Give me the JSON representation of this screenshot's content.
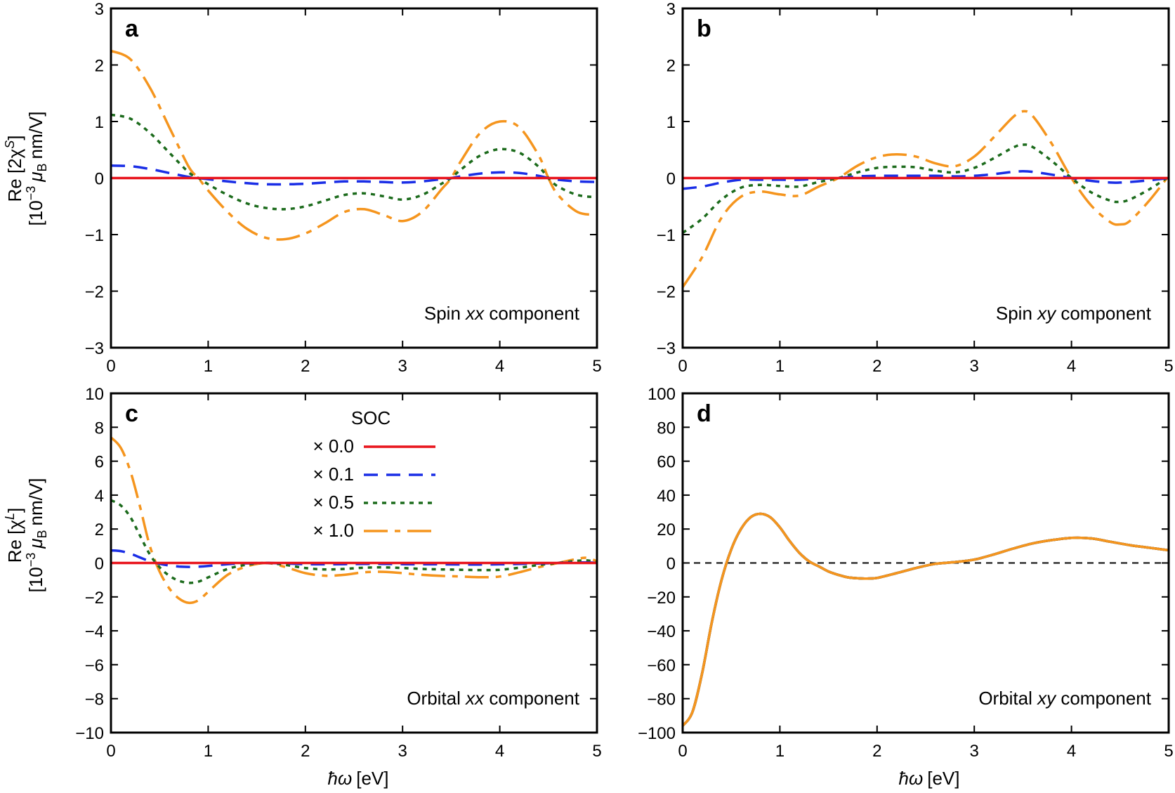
{
  "figure": {
    "ylabel_top_line1": "Re [2χ",
    "ylabel_top_sup": "S",
    "ylabel_top_end": "]",
    "ylabel_bottom_line1": "Re [χ",
    "ylabel_bottom_sup": "L",
    "ylabel_bottom_end": "]",
    "ylabel_units_open": "[10",
    "ylabel_units_exp": "−3",
    "ylabel_units_mu": "μ",
    "ylabel_units_sub": "B",
    "ylabel_units_rest": "nm/V]",
    "xlabel_hbar": "ħω",
    "xlabel_units": "[eV]"
  },
  "legend": {
    "title": "SOC",
    "entries": [
      {
        "label": "× 0.0",
        "color": "#e8141c",
        "dash": "solid"
      },
      {
        "label": "× 0.1",
        "color": "#1a2ee6",
        "dash": "dashed"
      },
      {
        "label": "× 0.5",
        "color": "#1c6b1c",
        "dash": "dotted"
      },
      {
        "label": "× 1.0",
        "color": "#f5951e",
        "dash": "dashdot"
      }
    ]
  },
  "colors": {
    "soc_0.0": "#e8141c",
    "soc_0.1": "#1a2ee6",
    "soc_0.5": "#1c6b1c",
    "soc_1.0": "#f5951e",
    "zero_line": "#000000"
  },
  "chart_data": [
    {
      "panel": "a",
      "type": "line",
      "annotation_prefix": "Spin ",
      "annotation_italic": "xx",
      "annotation_suffix": " component",
      "xlim": [
        0,
        5
      ],
      "ylim": [
        -3,
        3
      ],
      "xticks": [
        "0",
        "1",
        "2",
        "3",
        "4",
        "5"
      ],
      "yticks": [
        "−3",
        "−2",
        "−1",
        "0",
        "1",
        "2",
        "3"
      ],
      "x": [
        0,
        0.2,
        0.4,
        0.6,
        0.8,
        0.9,
        1.0,
        1.2,
        1.4,
        1.6,
        1.8,
        2.0,
        2.2,
        2.4,
        2.6,
        2.8,
        3.0,
        3.2,
        3.4,
        3.5,
        3.6,
        3.8,
        4.0,
        4.2,
        4.4,
        4.5,
        4.6,
        4.8,
        5.0
      ],
      "series": [
        {
          "name": "× 0.0",
          "values": [
            0,
            0,
            0,
            0,
            0,
            0,
            0,
            0,
            0,
            0,
            0,
            0,
            0,
            0,
            0,
            0,
            0,
            0,
            0,
            0,
            0,
            0,
            0,
            0,
            0,
            0,
            0,
            0,
            0
          ]
        },
        {
          "name": "× 0.1",
          "values": [
            0.22,
            0.21,
            0.16,
            0.09,
            0.02,
            0.0,
            -0.02,
            -0.06,
            -0.09,
            -0.11,
            -0.11,
            -0.1,
            -0.08,
            -0.06,
            -0.06,
            -0.07,
            -0.08,
            -0.06,
            -0.02,
            0.0,
            0.03,
            0.08,
            0.1,
            0.09,
            0.04,
            0.0,
            -0.03,
            -0.06,
            -0.07
          ]
        },
        {
          "name": "× 0.5",
          "values": [
            1.12,
            1.05,
            0.8,
            0.45,
            0.1,
            0.0,
            -0.11,
            -0.3,
            -0.45,
            -0.53,
            -0.55,
            -0.5,
            -0.4,
            -0.3,
            -0.27,
            -0.32,
            -0.38,
            -0.3,
            -0.1,
            0.0,
            0.15,
            0.4,
            0.51,
            0.45,
            0.2,
            0.0,
            -0.15,
            -0.3,
            -0.34
          ]
        },
        {
          "name": "× 1.0",
          "values": [
            2.25,
            2.1,
            1.6,
            0.9,
            0.2,
            0.0,
            -0.22,
            -0.6,
            -0.9,
            -1.06,
            -1.08,
            -0.98,
            -0.8,
            -0.6,
            -0.55,
            -0.65,
            -0.76,
            -0.6,
            -0.2,
            0.0,
            0.3,
            0.8,
            1.0,
            0.9,
            0.4,
            0.0,
            -0.3,
            -0.6,
            -0.65
          ]
        }
      ]
    },
    {
      "panel": "b",
      "type": "line",
      "annotation_prefix": "Spin ",
      "annotation_italic": "xy",
      "annotation_suffix": " component",
      "xlim": [
        0,
        5
      ],
      "ylim": [
        -3,
        3
      ],
      "xticks": [
        "0",
        "1",
        "2",
        "3",
        "4",
        "5"
      ],
      "yticks": [
        "−3",
        "−2",
        "−1",
        "0",
        "1",
        "2",
        "3"
      ],
      "x": [
        0,
        0.2,
        0.4,
        0.6,
        0.8,
        1.0,
        1.2,
        1.4,
        1.6,
        1.8,
        2.0,
        2.2,
        2.4,
        2.6,
        2.8,
        3.0,
        3.2,
        3.4,
        3.5,
        3.6,
        3.8,
        4.0,
        4.2,
        4.4,
        4.5,
        4.6,
        4.8,
        5.0
      ],
      "series": [
        {
          "name": "× 0.0",
          "values": [
            0,
            0,
            0,
            0,
            0,
            0,
            0,
            0,
            0,
            0,
            0,
            0,
            0,
            0,
            0,
            0,
            0,
            0,
            0,
            0,
            0,
            0,
            0,
            0,
            0,
            0,
            0,
            0
          ]
        },
        {
          "name": "× 0.1",
          "values": [
            -0.19,
            -0.15,
            -0.08,
            -0.03,
            -0.03,
            -0.03,
            -0.03,
            -0.01,
            0.0,
            0.03,
            0.04,
            0.04,
            0.04,
            0.04,
            0.03,
            0.04,
            0.07,
            0.11,
            0.12,
            0.11,
            0.06,
            0.0,
            -0.05,
            -0.08,
            -0.08,
            -0.07,
            -0.04,
            0.0
          ]
        },
        {
          "name": "× 0.5",
          "values": [
            -0.97,
            -0.72,
            -0.38,
            -0.17,
            -0.12,
            -0.14,
            -0.15,
            -0.07,
            0.0,
            0.1,
            0.18,
            0.2,
            0.19,
            0.13,
            0.1,
            0.18,
            0.35,
            0.54,
            0.59,
            0.55,
            0.3,
            0.0,
            -0.25,
            -0.4,
            -0.42,
            -0.38,
            -0.2,
            0.02
          ]
        },
        {
          "name": "× 1.0",
          "values": [
            -1.93,
            -1.4,
            -0.7,
            -0.33,
            -0.24,
            -0.29,
            -0.31,
            -0.15,
            0.0,
            0.22,
            0.37,
            0.42,
            0.38,
            0.26,
            0.21,
            0.38,
            0.72,
            1.08,
            1.18,
            1.1,
            0.6,
            0.0,
            -0.48,
            -0.78,
            -0.82,
            -0.76,
            -0.4,
            0.04
          ]
        }
      ]
    },
    {
      "panel": "c",
      "type": "line",
      "annotation_prefix": "Orbital ",
      "annotation_italic": "xx",
      "annotation_suffix": " component",
      "xlim": [
        0,
        5
      ],
      "ylim": [
        -10,
        10
      ],
      "xticks": [
        "0",
        "1",
        "2",
        "3",
        "4",
        "5"
      ],
      "yticks": [
        "−10",
        "−8",
        "−6",
        "−4",
        "−2",
        "0",
        "2",
        "4",
        "6",
        "8",
        "10"
      ],
      "x": [
        0,
        0.1,
        0.2,
        0.3,
        0.4,
        0.5,
        0.6,
        0.7,
        0.8,
        0.9,
        1.0,
        1.2,
        1.4,
        1.6,
        1.8,
        2.0,
        2.2,
        2.4,
        2.6,
        2.8,
        3.0,
        3.2,
        3.4,
        3.6,
        3.8,
        4.0,
        4.2,
        4.4,
        4.6,
        4.8,
        4.9,
        5.0
      ],
      "series": [
        {
          "name": "× 0.0",
          "values": [
            0,
            0,
            0,
            0,
            0,
            0,
            0,
            0,
            0,
            0,
            0,
            0,
            0,
            0,
            0,
            0,
            0,
            0,
            0,
            0,
            0,
            0,
            0,
            0,
            0,
            0,
            0,
            0,
            0,
            0,
            0,
            0
          ]
        },
        {
          "name": "× 0.1",
          "values": [
            0.74,
            0.7,
            0.55,
            0.32,
            0.1,
            -0.05,
            -0.15,
            -0.21,
            -0.23,
            -0.22,
            -0.18,
            -0.07,
            -0.02,
            0.0,
            -0.03,
            -0.07,
            -0.08,
            -0.07,
            -0.06,
            -0.06,
            -0.07,
            -0.08,
            -0.08,
            -0.09,
            -0.09,
            -0.08,
            -0.06,
            -0.03,
            0.0,
            0.03,
            0.03,
            0.01
          ]
        },
        {
          "name": "× 0.5",
          "values": [
            3.7,
            3.4,
            2.7,
            1.6,
            0.5,
            -0.25,
            -0.75,
            -1.05,
            -1.17,
            -1.1,
            -0.85,
            -0.35,
            -0.1,
            0.0,
            -0.12,
            -0.3,
            -0.38,
            -0.35,
            -0.28,
            -0.26,
            -0.3,
            -0.35,
            -0.38,
            -0.4,
            -0.42,
            -0.4,
            -0.28,
            -0.12,
            0.0,
            0.13,
            0.15,
            0.05
          ]
        },
        {
          "name": "× 1.0",
          "values": [
            7.4,
            6.8,
            5.4,
            3.3,
            1.0,
            -0.5,
            -1.5,
            -2.1,
            -2.35,
            -2.2,
            -1.7,
            -0.7,
            -0.2,
            0.0,
            -0.25,
            -0.6,
            -0.75,
            -0.7,
            -0.55,
            -0.52,
            -0.6,
            -0.7,
            -0.76,
            -0.8,
            -0.84,
            -0.8,
            -0.55,
            -0.25,
            0.0,
            0.25,
            0.3,
            0.1
          ]
        }
      ]
    },
    {
      "panel": "d",
      "type": "line",
      "annotation_prefix": "Orbital ",
      "annotation_italic": "xy",
      "annotation_suffix": " component",
      "xlim": [
        0,
        5
      ],
      "ylim": [
        -100,
        100
      ],
      "xticks": [
        "0",
        "1",
        "2",
        "3",
        "4",
        "5"
      ],
      "yticks": [
        "−100",
        "−80",
        "−60",
        "−40",
        "−20",
        "0",
        "20",
        "40",
        "60",
        "80",
        "100"
      ],
      "x": [
        0,
        0.1,
        0.2,
        0.3,
        0.4,
        0.5,
        0.6,
        0.7,
        0.8,
        0.9,
        1.0,
        1.1,
        1.2,
        1.3,
        1.4,
        1.5,
        1.6,
        1.7,
        1.8,
        1.9,
        2.0,
        2.2,
        2.4,
        2.6,
        2.8,
        3.0,
        3.2,
        3.4,
        3.6,
        3.8,
        4.0,
        4.2,
        4.4,
        4.6,
        4.8,
        5.0
      ],
      "series": [
        {
          "name": "× 0.0",
          "values": [
            -96,
            -88,
            -65,
            -35,
            -10,
            8,
            20,
            27,
            29,
            27,
            21,
            13,
            6,
            1,
            -2,
            -5,
            -7,
            -8.5,
            -9,
            -9.2,
            -8.8,
            -6,
            -3,
            -0.5,
            0.5,
            2,
            5,
            8.5,
            11.5,
            13.5,
            14.8,
            14.5,
            12.5,
            10.5,
            9,
            7.5
          ]
        },
        {
          "name": "× 0.1",
          "values": [
            -96,
            -88,
            -65,
            -35,
            -10,
            8,
            20,
            27,
            29,
            27,
            21,
            13,
            6,
            1,
            -2,
            -5,
            -7,
            -8.5,
            -9,
            -9.2,
            -8.8,
            -6,
            -3,
            -0.5,
            0.5,
            2,
            5,
            8.5,
            11.5,
            13.5,
            14.8,
            14.5,
            12.5,
            10.5,
            9,
            7.5
          ]
        },
        {
          "name": "× 0.5",
          "values": [
            -96,
            -88,
            -65,
            -35,
            -10,
            8,
            20,
            27,
            29,
            27,
            21,
            13,
            6,
            1,
            -2,
            -5,
            -7,
            -8.5,
            -9,
            -9.2,
            -8.8,
            -6,
            -3,
            -0.5,
            0.5,
            2,
            5,
            8.5,
            11.5,
            13.5,
            14.8,
            14.5,
            12.5,
            10.5,
            9,
            7.5
          ]
        },
        {
          "name": "× 1.0",
          "values": [
            -96,
            -88,
            -65,
            -35,
            -10,
            8,
            20,
            27,
            29,
            27,
            21,
            13,
            6,
            1,
            -2,
            -5,
            -7,
            -8.5,
            -9,
            -9.2,
            -8.8,
            -6,
            -3,
            -0.5,
            0.5,
            2,
            5,
            8.5,
            11.5,
            13.5,
            14.8,
            14.5,
            12.5,
            10.5,
            9,
            7.5
          ]
        }
      ]
    }
  ]
}
